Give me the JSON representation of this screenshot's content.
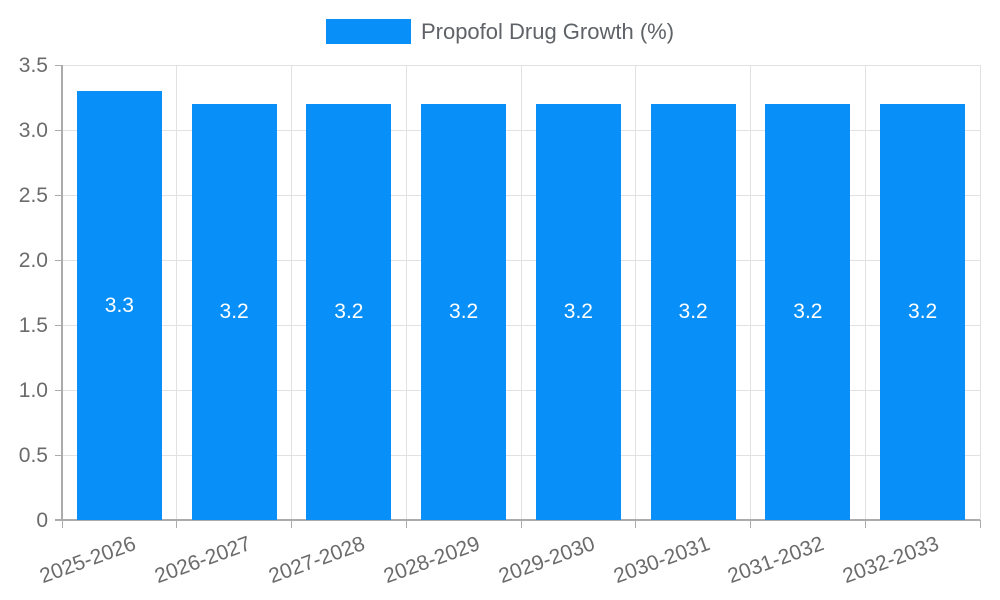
{
  "legend": {
    "label": "Propofol Drug Growth (%)"
  },
  "chart_data": {
    "type": "bar",
    "title": "",
    "series_name": "Propofol Drug Growth (%)",
    "categories": [
      "2025-2026",
      "2026-2027",
      "2027-2028",
      "2028-2029",
      "2029-2030",
      "2030-2031",
      "2031-2032",
      "2032-2033"
    ],
    "values": [
      3.3,
      3.2,
      3.2,
      3.2,
      3.2,
      3.2,
      3.2,
      3.2
    ],
    "bar_value_labels": [
      "3.3",
      "3.2",
      "3.2",
      "3.2",
      "3.2",
      "3.2",
      "3.2",
      "3.2"
    ],
    "xlabel": "",
    "ylabel": "",
    "ylim": [
      0,
      3.5
    ],
    "yticks": [
      0,
      0.5,
      1.0,
      1.5,
      2.0,
      2.5,
      3.0,
      3.5
    ],
    "ytick_labels": [
      "0",
      "0.5",
      "1.0",
      "1.5",
      "2.0",
      "2.5",
      "3.0",
      "3.5"
    ],
    "grid": true,
    "legend_position": "top-center",
    "x_label_rotation_deg": -20,
    "colors": {
      "bar": "#0990f8",
      "grid": "#e2e2e2",
      "axis": "#ababab",
      "tick_text": "#6b6b6b",
      "legend_text": "#5f6368",
      "value_text": "#ffffff",
      "background": "#ffffff"
    }
  }
}
